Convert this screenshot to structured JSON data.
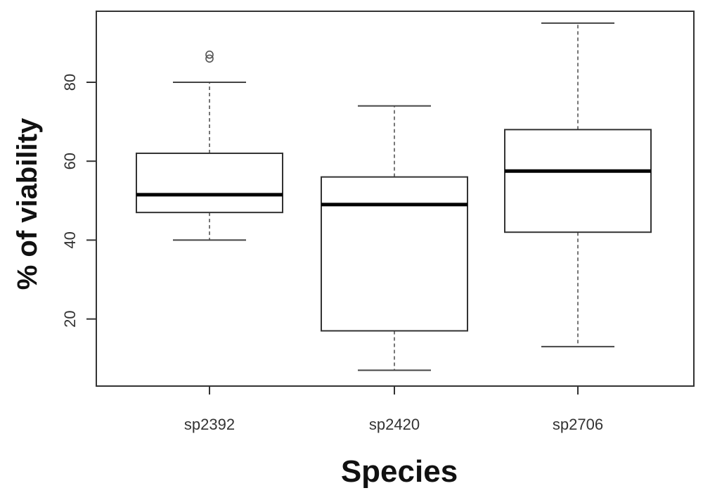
{
  "chart_data": {
    "type": "box",
    "xlabel": "Species",
    "ylabel": "% of viability",
    "ylim": [
      3,
      98
    ],
    "y_ticks": [
      20,
      40,
      60,
      80
    ],
    "categories": [
      "sp2392",
      "sp2420",
      "sp2706"
    ],
    "boxes": [
      {
        "category": "sp2392",
        "whisker_low": 40,
        "q1": 47,
        "median": 51.5,
        "q3": 62,
        "whisker_high": 80,
        "outliers": [
          86,
          87
        ]
      },
      {
        "category": "sp2420",
        "whisker_low": 7,
        "q1": 17,
        "median": 49,
        "q3": 56,
        "whisker_high": 74,
        "outliers": []
      },
      {
        "category": "sp2706",
        "whisker_low": 13,
        "q1": 42,
        "median": 57.5,
        "q3": 68,
        "whisker_high": 95,
        "outliers": []
      }
    ],
    "grid": false,
    "legend": "none"
  }
}
